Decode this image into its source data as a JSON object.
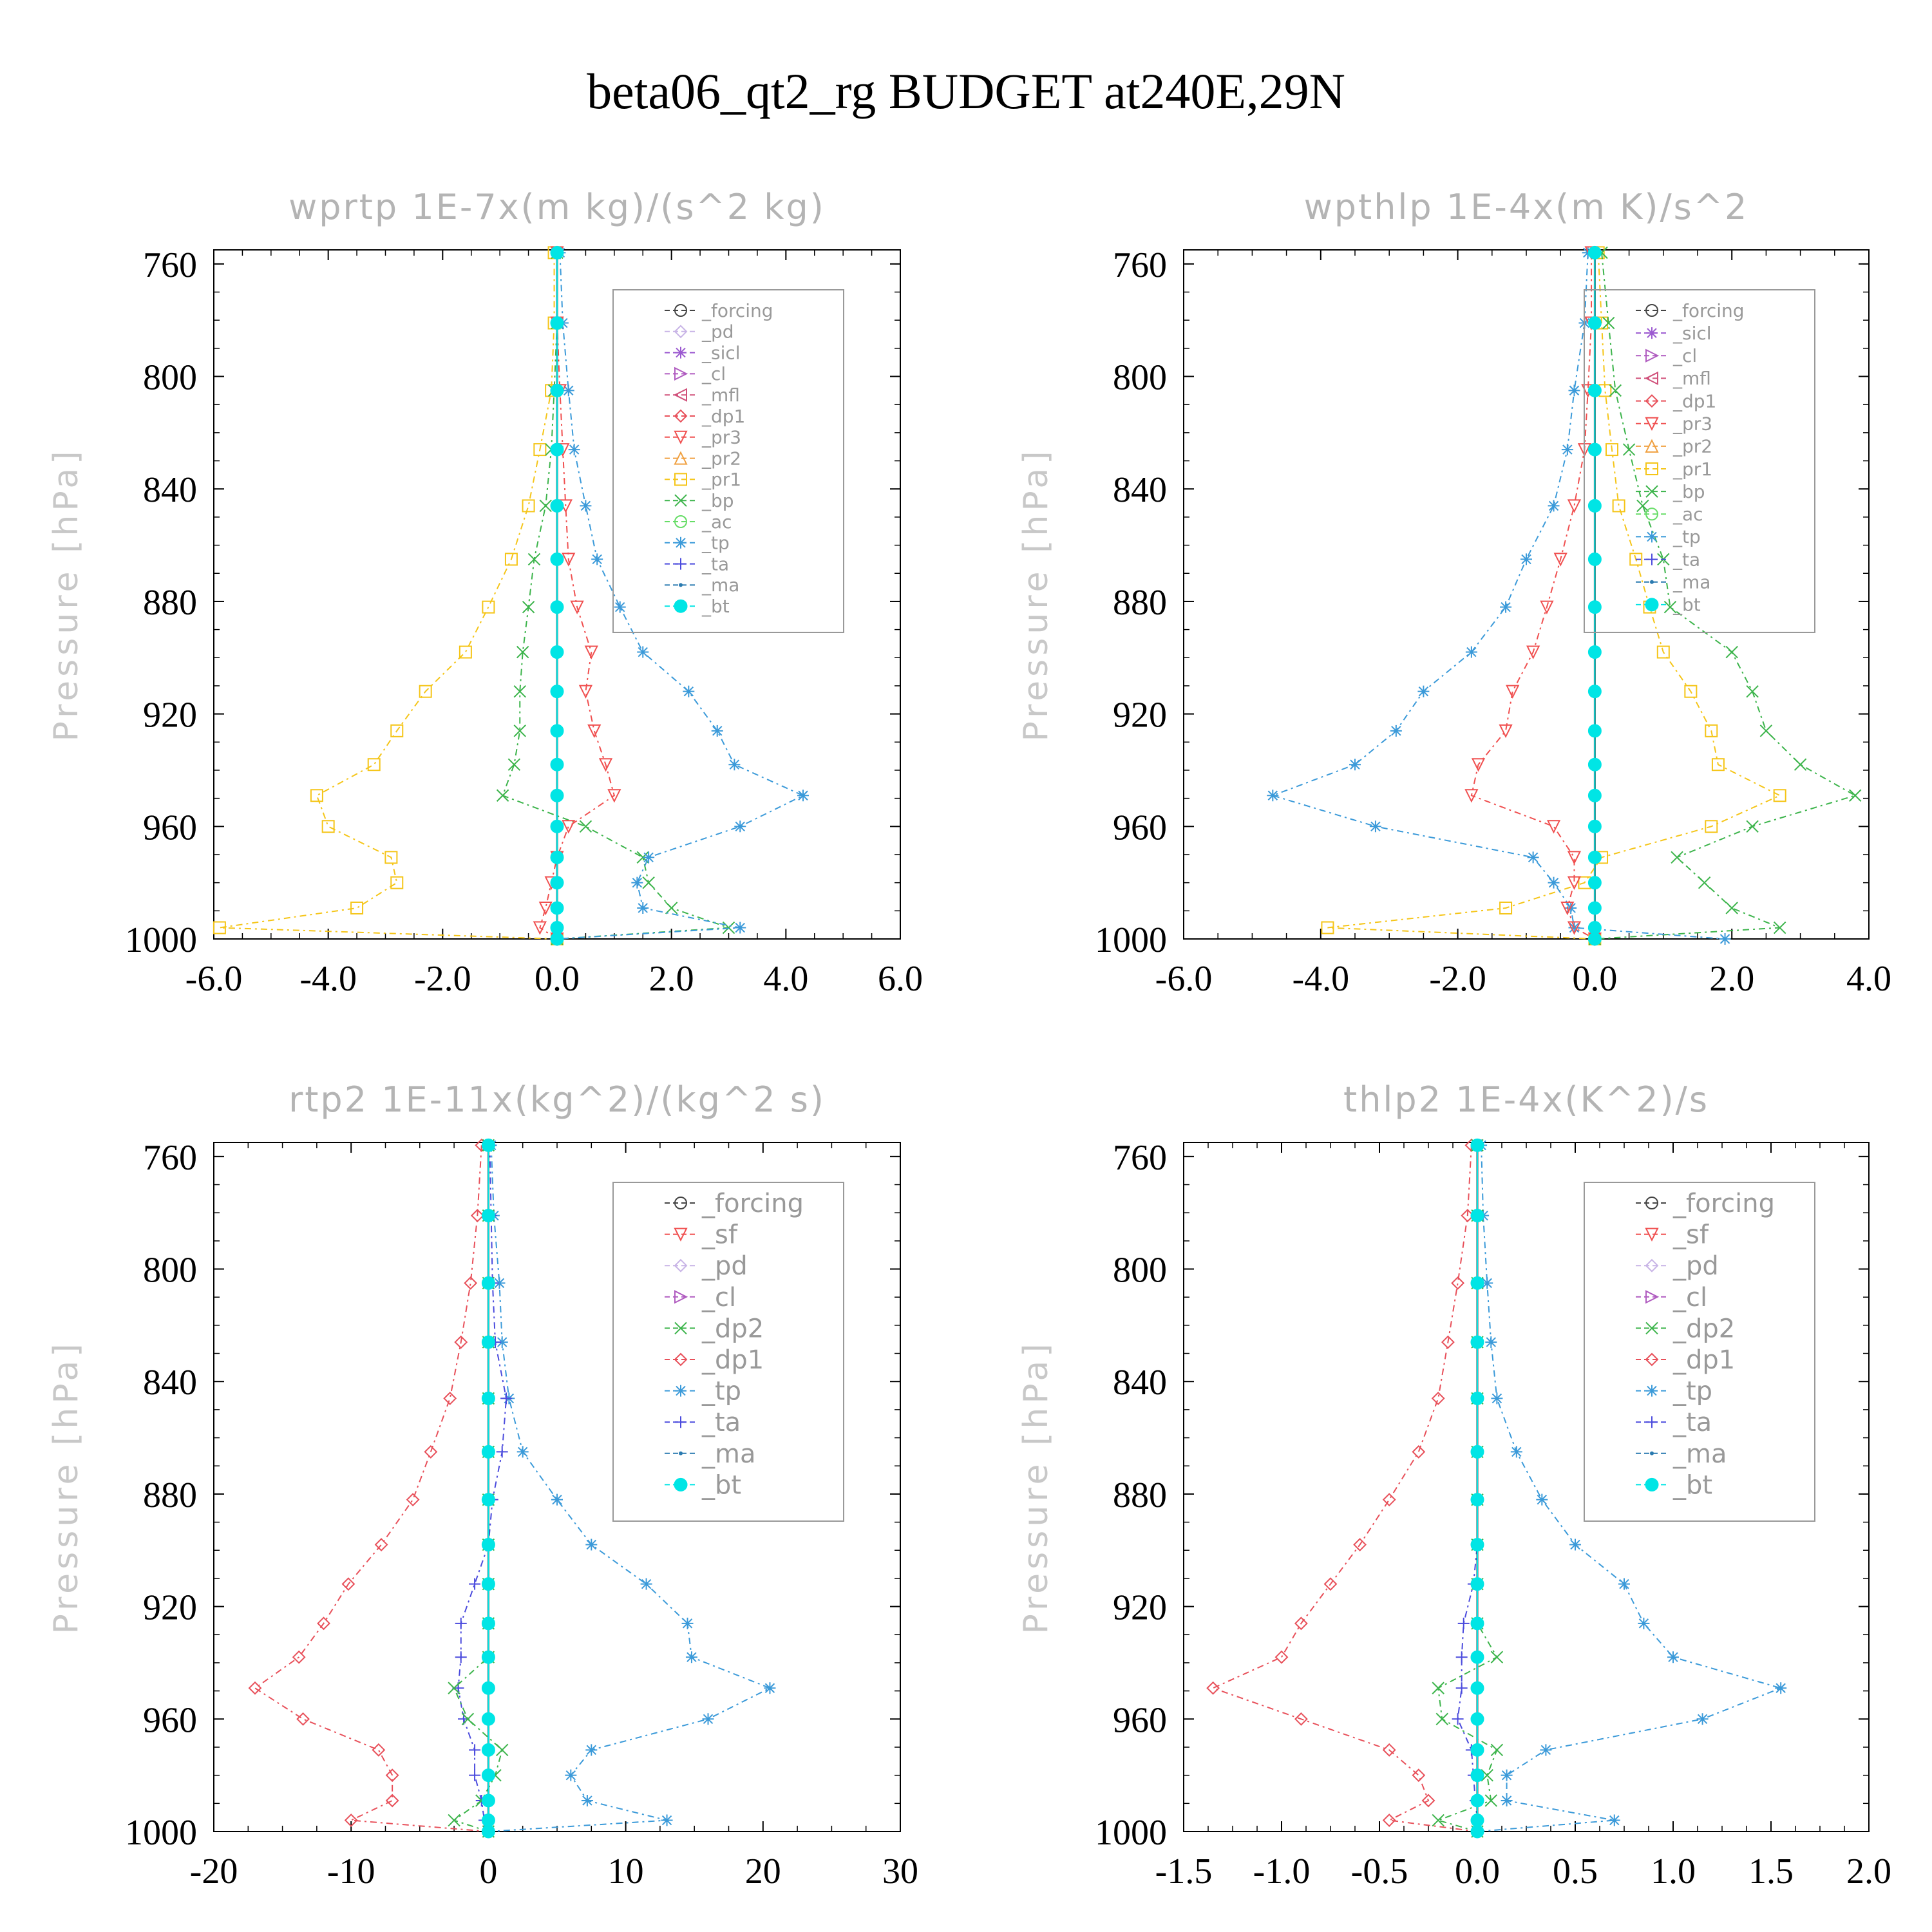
{
  "figure_title": "beta06_qt2_rg  BUDGET at240E,29N",
  "series_styles": {
    "_forcing": {
      "color": "#444444",
      "marker": "circle"
    },
    "_pd": {
      "color": "#c8b4e6",
      "marker": "diamond"
    },
    "_sicl": {
      "color": "#9b59d0",
      "marker": "star"
    },
    "_cl": {
      "color": "#b05cc0",
      "marker": "tri-right"
    },
    "_mfl": {
      "color": "#d0507a",
      "marker": "tri-left"
    },
    "_dp1": {
      "color": "#e8505a",
      "marker": "diamond"
    },
    "_pr3": {
      "color": "#f05050",
      "marker": "tri-down"
    },
    "_pr2": {
      "color": "#f0a040",
      "marker": "tri-up"
    },
    "_pr1": {
      "color": "#f5c518",
      "marker": "square"
    },
    "_bp": {
      "color": "#3cb44b",
      "marker": "x"
    },
    "_ac": {
      "color": "#66dd66",
      "marker": "circle"
    },
    "_tp": {
      "color": "#3b9ad9",
      "marker": "asterisk"
    },
    "_ta": {
      "color": "#4b4bdd",
      "marker": "plus"
    },
    "_ma": {
      "color": "#2a7ab0",
      "marker": "dot"
    },
    "_bt": {
      "color": "#00e5e5",
      "marker": "filled-circle"
    },
    "_sf": {
      "color": "#f05050",
      "marker": "tri-down"
    },
    "_dp2": {
      "color": "#3cb44b",
      "marker": "x"
    }
  },
  "chart_data": [
    {
      "type": "line",
      "title": "wprtp   1E-7x(m kg)/(s^2 kg)",
      "ylabel": "Pressure [hPa]",
      "xlim": [
        -6,
        6
      ],
      "xticks": [
        "-6.0",
        "-4.0",
        "-2.0",
        "0.0",
        "2.0",
        "4.0",
        "6.0"
      ],
      "ylim": [
        1000,
        755
      ],
      "yticks": [
        "760",
        "800",
        "840",
        "880",
        "920",
        "960",
        "1000"
      ],
      "legend": [
        "_forcing",
        "_pd",
        "_sicl",
        "_cl",
        "_mfl",
        "_dp1",
        "_pr3",
        "_pr2",
        "_pr1",
        "_bp",
        "_ac",
        "_tp",
        "_ta",
        "_ma",
        "_bt"
      ],
      "pressure": [
        756,
        781,
        805,
        826,
        846,
        865,
        882,
        898,
        912,
        926,
        938,
        949,
        960,
        971,
        980,
        989,
        996,
        1000
      ],
      "series": [
        {
          "name": "_pr1",
          "values": [
            -0.05,
            -0.05,
            -0.1,
            -0.3,
            -0.5,
            -0.8,
            -1.2,
            -1.6,
            -2.3,
            -2.8,
            -3.2,
            -4.2,
            -4.0,
            -2.9,
            -2.8,
            -3.5,
            -5.9,
            0.0
          ]
        },
        {
          "name": "_bp",
          "values": [
            0.0,
            0.0,
            -0.05,
            -0.1,
            -0.2,
            -0.4,
            -0.5,
            -0.6,
            -0.65,
            -0.65,
            -0.75,
            -0.95,
            0.5,
            1.5,
            1.6,
            2.0,
            3.0,
            0.0
          ]
        },
        {
          "name": "_tp",
          "values": [
            0.05,
            0.1,
            0.2,
            0.3,
            0.5,
            0.7,
            1.1,
            1.5,
            2.3,
            2.8,
            3.1,
            4.3,
            3.2,
            1.6,
            1.4,
            1.5,
            3.2,
            0.0
          ]
        },
        {
          "name": "_pr3",
          "values": [
            0.0,
            0.0,
            0.05,
            0.1,
            0.15,
            0.2,
            0.35,
            0.6,
            0.5,
            0.65,
            0.85,
            1.0,
            0.2,
            0.0,
            -0.1,
            -0.2,
            -0.3,
            0.0
          ]
        },
        {
          "name": "_ta",
          "values": [
            0.0,
            0.0,
            0.0,
            0.0,
            0.0,
            0.0,
            0.0,
            0.0,
            0.0,
            0.0,
            0.0,
            0.0,
            0.0,
            0.0,
            0.0,
            0.0,
            0.0,
            0.0
          ]
        },
        {
          "name": "_forcing",
          "values": [
            0.0,
            0.0,
            0.0,
            0.0,
            0.0,
            0.0,
            0.0,
            0.0,
            0.0,
            0.0,
            0.0,
            0.0,
            0.0,
            0.0,
            0.0,
            0.0,
            0.0,
            0.0
          ]
        },
        {
          "name": "_bt",
          "values": [
            0.0,
            0.0,
            0.0,
            0.0,
            0.0,
            0.0,
            0.0,
            0.0,
            0.0,
            0.0,
            0.0,
            0.0,
            0.0,
            0.0,
            0.0,
            0.0,
            0.0,
            0.0
          ]
        }
      ]
    },
    {
      "type": "line",
      "title": "wpthlp   1E-4x(m K)/s^2",
      "ylabel": "Pressure [hPa]",
      "xlim": [
        -6,
        4
      ],
      "xticks": [
        "-6.0",
        "-4.0",
        "-2.0",
        "0.0",
        "2.0",
        "4.0"
      ],
      "ylim": [
        1000,
        755
      ],
      "yticks": [
        "760",
        "800",
        "840",
        "880",
        "920",
        "960",
        "1000"
      ],
      "legend": [
        "_forcing",
        "_sicl",
        "_cl",
        "_mfl",
        "_dp1",
        "_pr3",
        "_pr2",
        "_pr1",
        "_bp",
        "_ac",
        "_tp",
        "_ta",
        "_ma",
        "_bt"
      ],
      "pressure": [
        756,
        781,
        805,
        826,
        846,
        865,
        882,
        898,
        912,
        926,
        938,
        949,
        960,
        971,
        980,
        989,
        996,
        1000
      ],
      "series": [
        {
          "name": "_pr1",
          "values": [
            0.05,
            0.1,
            0.15,
            0.25,
            0.35,
            0.6,
            0.8,
            1.0,
            1.4,
            1.7,
            1.8,
            2.7,
            1.7,
            0.1,
            -0.15,
            -1.3,
            -3.9,
            0.0
          ]
        },
        {
          "name": "_bp",
          "values": [
            0.1,
            0.2,
            0.3,
            0.5,
            0.7,
            1.0,
            1.1,
            2.0,
            2.3,
            2.5,
            3.0,
            3.8,
            2.3,
            1.2,
            1.6,
            2.0,
            2.7,
            0.0
          ]
        },
        {
          "name": "_tp",
          "values": [
            -0.1,
            -0.15,
            -0.3,
            -0.4,
            -0.6,
            -1.0,
            -1.3,
            -1.8,
            -2.5,
            -2.9,
            -3.5,
            -4.7,
            -3.2,
            -0.9,
            -0.6,
            -0.35,
            -0.3,
            1.9
          ]
        },
        {
          "name": "_pr3",
          "values": [
            -0.05,
            -0.05,
            -0.1,
            -0.15,
            -0.3,
            -0.5,
            -0.7,
            -0.9,
            -1.2,
            -1.3,
            -1.7,
            -1.8,
            -0.6,
            -0.3,
            -0.3,
            -0.4,
            -0.3,
            0.0
          ]
        },
        {
          "name": "_forcing",
          "values": [
            0.0,
            0.0,
            0.0,
            0.0,
            0.0,
            0.0,
            0.0,
            0.0,
            0.0,
            0.0,
            0.0,
            0.0,
            0.0,
            0.0,
            0.0,
            0.0,
            0.0,
            0.0
          ]
        },
        {
          "name": "_bt",
          "values": [
            0.0,
            0.0,
            0.0,
            0.0,
            0.0,
            0.0,
            0.0,
            0.0,
            0.0,
            0.0,
            0.0,
            0.0,
            0.0,
            0.0,
            0.0,
            0.0,
            0.0,
            0.0
          ]
        }
      ]
    },
    {
      "type": "line",
      "title": "rtp2   1E-11x(kg^2)/(kg^2 s)",
      "ylabel": "Pressure [hPa]",
      "xlim": [
        -20,
        30
      ],
      "xticks": [
        "-20",
        "-10",
        "0",
        "10",
        "20",
        "30"
      ],
      "ylim": [
        1000,
        755
      ],
      "yticks": [
        "760",
        "800",
        "840",
        "880",
        "920",
        "960",
        "1000"
      ],
      "legend": [
        "_forcing",
        "_sf",
        "_pd",
        "_cl",
        "_dp2",
        "_dp1",
        "_tp",
        "_ta",
        "_ma",
        "_bt"
      ],
      "pressure": [
        756,
        781,
        805,
        826,
        846,
        865,
        882,
        898,
        912,
        926,
        938,
        949,
        960,
        971,
        980,
        989,
        996,
        1000
      ],
      "series": [
        {
          "name": "_dp1",
          "values": [
            -0.5,
            -0.8,
            -1.3,
            -2.0,
            -2.8,
            -4.2,
            -5.5,
            -7.8,
            -10.2,
            -12.0,
            -13.8,
            -17.0,
            -13.5,
            -8.0,
            -7.0,
            -7.0,
            -10.0,
            0.0
          ]
        },
        {
          "name": "_tp",
          "values": [
            0.2,
            0.4,
            0.8,
            1.0,
            1.5,
            2.5,
            5.0,
            7.5,
            11.5,
            14.5,
            14.8,
            20.5,
            16.0,
            7.5,
            6.0,
            7.2,
            13.0,
            0.0
          ]
        },
        {
          "name": "_ta",
          "values": [
            0.1,
            0.2,
            0.3,
            0.5,
            1.3,
            1.0,
            0.3,
            0.0,
            -1.0,
            -2.0,
            -2.0,
            -2.2,
            -1.8,
            -1.0,
            -1.0,
            -0.5,
            -0.3,
            0.0
          ]
        },
        {
          "name": "_dp2",
          "values": [
            0.0,
            0.0,
            0.0,
            0.0,
            0.0,
            0.0,
            0.0,
            0.0,
            0.0,
            0.0,
            0.0,
            -2.5,
            -1.5,
            1.0,
            0.5,
            -0.5,
            -2.5,
            0.0
          ]
        },
        {
          "name": "_forcing",
          "values": [
            0.0,
            0.0,
            0.0,
            0.0,
            0.0,
            0.0,
            0.0,
            0.0,
            0.0,
            0.0,
            0.0,
            0.0,
            0.0,
            0.0,
            0.0,
            0.0,
            0.0,
            0.0
          ]
        },
        {
          "name": "_bt",
          "values": [
            0.0,
            0.0,
            0.0,
            0.0,
            0.0,
            0.0,
            0.0,
            0.0,
            0.0,
            0.0,
            0.0,
            0.0,
            0.0,
            0.0,
            0.0,
            0.0,
            0.0,
            0.0
          ]
        }
      ]
    },
    {
      "type": "line",
      "title": "thlp2   1E-4x(K^2)/s",
      "ylabel": "Pressure [hPa]",
      "xlim": [
        -1.5,
        2.0
      ],
      "xticks": [
        "-1.5",
        "-1.0",
        "-0.5",
        "0.0",
        "0.5",
        "1.0",
        "1.5",
        "2.0"
      ],
      "ylim": [
        1000,
        755
      ],
      "yticks": [
        "760",
        "800",
        "840",
        "880",
        "920",
        "960",
        "1000"
      ],
      "legend": [
        "_forcing",
        "_sf",
        "_pd",
        "_cl",
        "_dp2",
        "_dp1",
        "_tp",
        "_ta",
        "_ma",
        "_bt"
      ],
      "pressure": [
        756,
        781,
        805,
        826,
        846,
        865,
        882,
        898,
        912,
        926,
        938,
        949,
        960,
        971,
        980,
        989,
        996,
        1000
      ],
      "series": [
        {
          "name": "_dp1",
          "values": [
            -0.03,
            -0.05,
            -0.1,
            -0.15,
            -0.2,
            -0.3,
            -0.45,
            -0.6,
            -0.75,
            -0.9,
            -1.0,
            -1.35,
            -0.9,
            -0.45,
            -0.3,
            -0.25,
            -0.45,
            0.0
          ]
        },
        {
          "name": "_tp",
          "values": [
            0.02,
            0.03,
            0.05,
            0.07,
            0.1,
            0.2,
            0.33,
            0.5,
            0.75,
            0.85,
            1.0,
            1.55,
            1.15,
            0.35,
            0.15,
            0.15,
            0.7,
            0.0
          ]
        },
        {
          "name": "_ta",
          "values": [
            0.0,
            0.0,
            0.0,
            0.0,
            0.0,
            0.0,
            0.0,
            0.0,
            -0.02,
            -0.07,
            -0.08,
            -0.08,
            -0.1,
            -0.03,
            -0.02,
            -0.01,
            0.0,
            0.0
          ]
        },
        {
          "name": "_dp2",
          "values": [
            0.0,
            0.0,
            0.0,
            0.0,
            0.0,
            0.0,
            0.0,
            0.0,
            0.0,
            0.0,
            0.1,
            -0.2,
            -0.18,
            0.1,
            0.05,
            0.07,
            -0.2,
            0.0
          ]
        },
        {
          "name": "_forcing",
          "values": [
            0.0,
            0.0,
            0.0,
            0.0,
            0.0,
            0.0,
            0.0,
            0.0,
            0.0,
            0.0,
            0.0,
            0.0,
            0.0,
            0.0,
            0.0,
            0.0,
            0.0,
            0.0
          ]
        },
        {
          "name": "_bt",
          "values": [
            0.0,
            0.0,
            0.0,
            0.0,
            0.0,
            0.0,
            0.0,
            0.0,
            0.0,
            0.0,
            0.0,
            0.0,
            0.0,
            0.0,
            0.0,
            0.0,
            0.0,
            0.0
          ]
        }
      ]
    }
  ]
}
